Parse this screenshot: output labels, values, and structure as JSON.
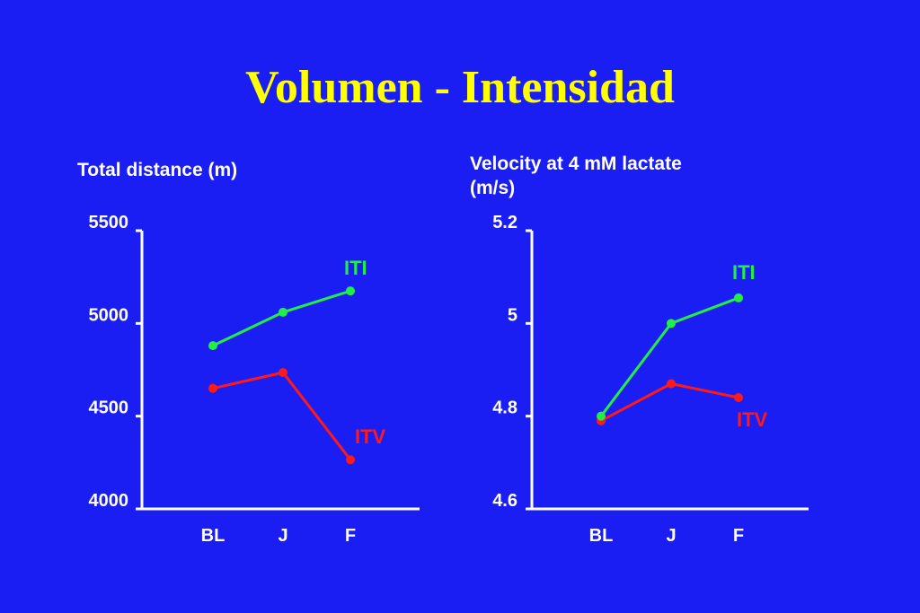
{
  "title": "Volumen - Intensidad",
  "colors": {
    "background": "#1a1ef2",
    "title": "#ffff00",
    "axis": "#ffffff",
    "ITI": "#22ee44",
    "ITV": "#ff1a1a"
  },
  "chart_data": [
    {
      "type": "line",
      "ylabel": [
        "Total distance (m)"
      ],
      "categories": [
        "BL",
        "J",
        "F"
      ],
      "ylim": [
        4000,
        5500
      ],
      "yticks": [
        "5500",
        "5000",
        "4500",
        "4000"
      ],
      "series": [
        {
          "name": "ITI",
          "values": [
            4880,
            5060,
            5175
          ]
        },
        {
          "name": "ITV",
          "values": [
            4650,
            4735,
            4265
          ]
        }
      ]
    },
    {
      "type": "line",
      "ylabel": [
        "Velocity at 4 mM lactate",
        "(m/s)"
      ],
      "categories": [
        "BL",
        "J",
        "F"
      ],
      "ylim": [
        4.6,
        5.2
      ],
      "yticks": [
        "5.2",
        "5",
        "4.8",
        "4.6"
      ],
      "series": [
        {
          "name": "ITI",
          "values": [
            4.8,
            5.0,
            5.055
          ]
        },
        {
          "name": "ITV",
          "values": [
            4.79,
            4.87,
            4.84
          ]
        }
      ]
    }
  ]
}
